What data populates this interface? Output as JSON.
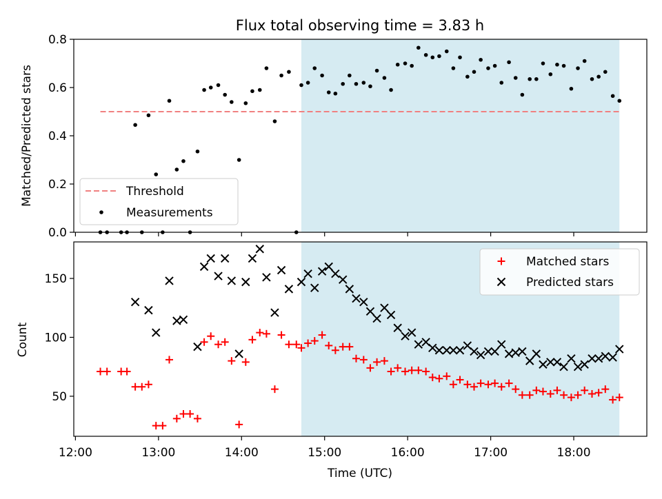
{
  "figure": {
    "title": "Flux total observing time = 3.83 h",
    "shaded_color": "#add8e6",
    "shaded_window": [
      14.72,
      18.55
    ]
  },
  "chart_data": [
    {
      "type": "scatter",
      "panel": "top",
      "ylabel": "Matched/Predicted stars",
      "xlim": [
        11.98,
        18.88
      ],
      "ylim": [
        0,
        0.8
      ],
      "y_ticks": [
        "0.0",
        "0.2",
        "0.4",
        "0.6",
        "0.8"
      ],
      "y_tick_values": [
        0,
        0.2,
        0.4,
        0.6,
        0.8
      ],
      "grid": false,
      "legend_position": "lower-left",
      "threshold": {
        "name": "Threshold",
        "value": 0.5,
        "x_range": [
          12.3,
          18.55
        ],
        "color": "#f08080",
        "style": "dashed"
      },
      "series": [
        {
          "name": "Measurements",
          "color": "#000000",
          "marker": "dot",
          "x": [
            12.3,
            12.38,
            12.55,
            12.62,
            12.72,
            12.8,
            12.88,
            12.97,
            13.05,
            13.13,
            13.22,
            13.3,
            13.38,
            13.47,
            13.55,
            13.63,
            13.72,
            13.8,
            13.88,
            13.97,
            14.05,
            14.13,
            14.22,
            14.3,
            14.4,
            14.48,
            14.57,
            14.66,
            14.72,
            14.8,
            14.88,
            14.97,
            15.05,
            15.13,
            15.22,
            15.3,
            15.38,
            15.47,
            15.55,
            15.63,
            15.72,
            15.8,
            15.88,
            15.97,
            16.05,
            16.13,
            16.22,
            16.3,
            16.38,
            16.47,
            16.55,
            16.63,
            16.72,
            16.8,
            16.88,
            16.97,
            17.05,
            17.13,
            17.22,
            17.3,
            17.38,
            17.47,
            17.55,
            17.63,
            17.72,
            17.8,
            17.88,
            17.97,
            18.05,
            18.13,
            18.22,
            18.3,
            18.38,
            18.47,
            18.55
          ],
          "y": [
            0.0,
            0.0,
            0.0,
            0.0,
            0.445,
            0.0,
            0.485,
            0.24,
            0.0,
            0.545,
            0.26,
            0.295,
            0.0,
            0.335,
            0.59,
            0.6,
            0.61,
            0.57,
            0.54,
            0.3,
            0.535,
            0.585,
            0.59,
            0.68,
            0.46,
            0.65,
            0.665,
            0.0,
            0.61,
            0.62,
            0.68,
            0.65,
            0.58,
            0.575,
            0.615,
            0.65,
            0.615,
            0.62,
            0.605,
            0.67,
            0.64,
            0.59,
            0.695,
            0.7,
            0.69,
            0.765,
            0.735,
            0.725,
            0.73,
            0.75,
            0.68,
            0.725,
            0.645,
            0.665,
            0.715,
            0.68,
            0.69,
            0.62,
            0.705,
            0.64,
            0.57,
            0.635,
            0.635,
            0.7,
            0.655,
            0.695,
            0.69,
            0.595,
            0.68,
            0.71,
            0.635,
            0.645,
            0.665,
            0.565,
            0.545
          ]
        }
      ]
    },
    {
      "type": "scatter",
      "panel": "bottom",
      "xlabel": "Time (UTC)",
      "ylabel": "Count",
      "xlim": [
        11.98,
        18.88
      ],
      "ylim": [
        16,
        181
      ],
      "x_ticks": [
        "12:00",
        "13:00",
        "14:00",
        "15:00",
        "16:00",
        "17:00",
        "18:00"
      ],
      "x_tick_values": [
        12,
        13,
        14,
        15,
        16,
        17,
        18
      ],
      "y_ticks": [
        "50",
        "100",
        "150"
      ],
      "y_tick_values": [
        50,
        100,
        150
      ],
      "grid": false,
      "legend_position": "top-right",
      "series": [
        {
          "name": "Matched stars",
          "color": "#ff0000",
          "marker": "plus",
          "x": [
            12.3,
            12.38,
            12.55,
            12.62,
            12.72,
            12.8,
            12.88,
            12.97,
            13.05,
            13.13,
            13.22,
            13.3,
            13.38,
            13.47,
            13.55,
            13.63,
            13.72,
            13.8,
            13.88,
            13.97,
            14.05,
            14.13,
            14.22,
            14.3,
            14.4,
            14.48,
            14.57,
            14.66,
            14.72,
            14.8,
            14.88,
            14.97,
            15.05,
            15.13,
            15.22,
            15.3,
            15.38,
            15.47,
            15.55,
            15.63,
            15.72,
            15.8,
            15.88,
            15.97,
            16.05,
            16.13,
            16.22,
            16.3,
            16.38,
            16.47,
            16.55,
            16.63,
            16.72,
            16.8,
            16.88,
            16.97,
            17.05,
            17.13,
            17.22,
            17.3,
            17.38,
            17.47,
            17.55,
            17.63,
            17.72,
            17.8,
            17.88,
            17.97,
            18.05,
            18.13,
            18.22,
            18.3,
            18.38,
            18.47,
            18.55
          ],
          "y": [
            71,
            71,
            71,
            71,
            58,
            58,
            60,
            25,
            25,
            81,
            31,
            35,
            35,
            31,
            96,
            101,
            94,
            96,
            80,
            26,
            79,
            98,
            104,
            103,
            56,
            102,
            94,
            94,
            91,
            95,
            97,
            102,
            93,
            89,
            92,
            92,
            82,
            81,
            74,
            79,
            80,
            71,
            74,
            71,
            72,
            72,
            71,
            66,
            65,
            67,
            60,
            64,
            60,
            58,
            61,
            60,
            61,
            58,
            61,
            56,
            51,
            51,
            55,
            54,
            52,
            55,
            51,
            49,
            51,
            55,
            52,
            53,
            56,
            47,
            49
          ]
        },
        {
          "name": "Predicted stars",
          "color": "#000000",
          "marker": "x",
          "x": [
            12.72,
            12.88,
            12.97,
            13.13,
            13.22,
            13.3,
            13.47,
            13.55,
            13.63,
            13.72,
            13.8,
            13.88,
            13.97,
            14.05,
            14.13,
            14.22,
            14.3,
            14.4,
            14.48,
            14.57,
            14.72,
            14.8,
            14.88,
            14.97,
            15.05,
            15.13,
            15.22,
            15.3,
            15.38,
            15.47,
            15.55,
            15.63,
            15.72,
            15.8,
            15.88,
            15.97,
            16.05,
            16.13,
            16.22,
            16.3,
            16.38,
            16.47,
            16.55,
            16.63,
            16.72,
            16.8,
            16.88,
            16.97,
            17.05,
            17.13,
            17.22,
            17.3,
            17.38,
            17.47,
            17.55,
            17.63,
            17.72,
            17.8,
            17.88,
            17.97,
            18.05,
            18.13,
            18.22,
            18.3,
            18.38,
            18.47,
            18.55
          ],
          "y": [
            130,
            123,
            104,
            148,
            114,
            115,
            92,
            160,
            167,
            152,
            167,
            148,
            86,
            147,
            167,
            175,
            151,
            121,
            157,
            141,
            147,
            154,
            142,
            156,
            160,
            154,
            149,
            141,
            133,
            130,
            122,
            116,
            125,
            119,
            108,
            101,
            104,
            94,
            96,
            91,
            89,
            89,
            89,
            89,
            93,
            88,
            85,
            88,
            88,
            94,
            86,
            87,
            88,
            80,
            86,
            77,
            79,
            79,
            75,
            82,
            75,
            77,
            82,
            82,
            84,
            83,
            90
          ]
        }
      ]
    }
  ]
}
